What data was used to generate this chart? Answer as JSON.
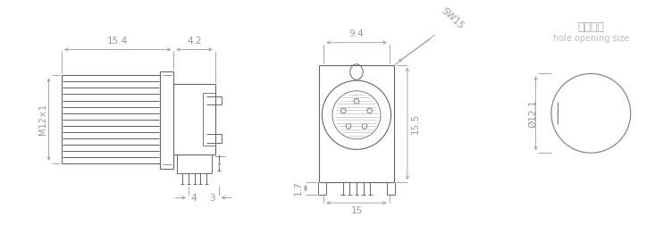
{
  "bg_color": "#ffffff",
  "line_color": "#666666",
  "dim_color": "#999999",
  "text_color": "#999999",
  "title_zh": "开孔尺寸",
  "title_en": "hole opening size",
  "dim_154": "15.4",
  "dim_42": "4.2",
  "dim_94": "9.4",
  "dim_sw15": "SW15",
  "dim_155": "15.5",
  "dim_15": "15",
  "dim_17": "1.7",
  "dim_4": "4",
  "dim_3": "3",
  "dim_m12": "M12×1",
  "dim_dia121": "Ø12.1",
  "figsize": [
    7.42,
    2.71
  ],
  "dpi": 100
}
